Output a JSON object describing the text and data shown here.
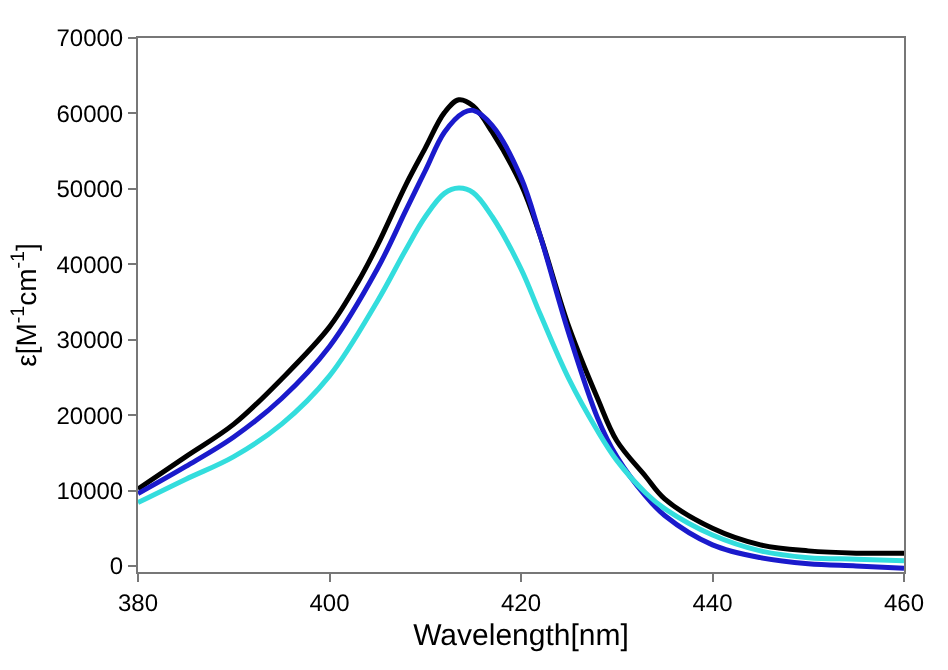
{
  "chart_data": {
    "type": "line",
    "xlabel": "Wavelength[nm]",
    "ylabel": "ε[M$^{-1}$cm$^{-1}$]",
    "xlim": [
      380,
      460
    ],
    "xticks": [
      380,
      400,
      420,
      440,
      460
    ],
    "ylim": [
      -800,
      70000
    ],
    "yticks": [
      0,
      10000,
      20000,
      30000,
      40000,
      50000,
      60000,
      70000
    ],
    "grid": false,
    "marker": "none",
    "line_style": "solid",
    "series": [
      {
        "color": "#000000",
        "x": [
          380,
          385,
          390,
          395,
          400,
          403,
          405,
          408,
          410,
          412,
          413.5,
          415,
          417,
          420,
          422,
          425,
          428,
          430,
          433,
          435,
          440,
          445,
          450,
          455,
          460
        ],
        "values": [
          10200,
          14500,
          18800,
          24800,
          31700,
          37700,
          42500,
          50600,
          55400,
          60100,
          61800,
          61000,
          57500,
          50600,
          43800,
          31700,
          22200,
          16600,
          11900,
          8900,
          5000,
          2800,
          2000,
          1700,
          1700
        ]
      },
      {
        "color": "#1a1acc",
        "x": [
          380,
          385,
          390,
          395,
          400,
          405,
          408,
          410,
          412,
          414,
          415,
          417,
          420,
          422,
          425,
          428,
          430,
          433,
          435,
          440,
          445,
          450,
          455,
          460
        ],
        "values": [
          9600,
          13200,
          17100,
          22200,
          29100,
          39400,
          47200,
          52400,
          57500,
          60100,
          60400,
          58400,
          51500,
          43800,
          30800,
          19600,
          14500,
          9300,
          6700,
          2800,
          1100,
          300,
          0,
          -300
        ]
      },
      {
        "color": "#33dddd",
        "x": [
          380,
          385,
          390,
          395,
          400,
          405,
          408,
          410,
          412,
          413.5,
          415,
          417,
          420,
          422,
          425,
          428,
          430,
          433,
          435,
          440,
          445,
          450,
          455,
          460
        ],
        "values": [
          8400,
          11500,
          14500,
          18800,
          25200,
          35100,
          42000,
          46300,
          49400,
          50100,
          49500,
          46300,
          39400,
          33400,
          24800,
          17900,
          14000,
          9700,
          7600,
          4100,
          2000,
          1100,
          900,
          700
        ]
      }
    ]
  }
}
